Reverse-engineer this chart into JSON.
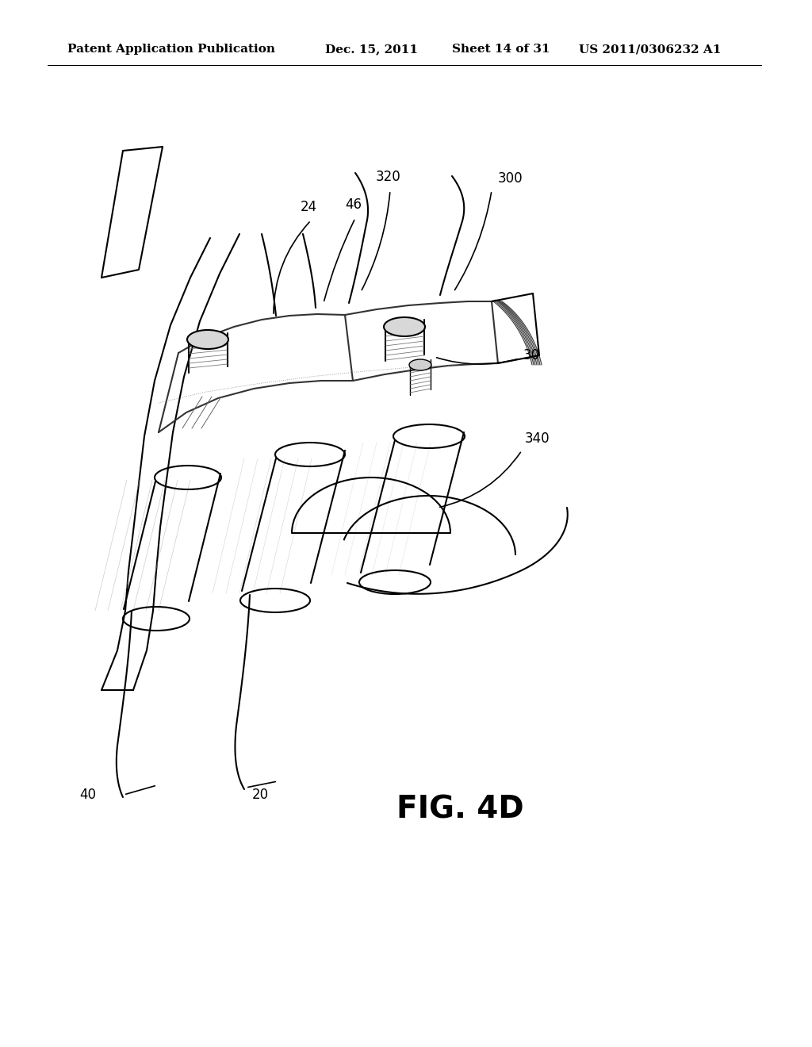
{
  "background_color": "#ffffff",
  "header_text": "Patent Application Publication",
  "header_date": "Dec. 15, 2011",
  "header_sheet": "Sheet 14 of 31",
  "header_patent": "US 2011/0306232 A1",
  "figure_label": "FIG. 4D",
  "ref_labels": [
    "24",
    "320",
    "46",
    "300",
    "30",
    "340",
    "40",
    "20"
  ],
  "header_fontsize": 11,
  "figure_label_fontsize": 28,
  "ref_fontsize": 12,
  "line_color": "#000000",
  "light_line_color": "#888888",
  "shading_color": "#cccccc"
}
